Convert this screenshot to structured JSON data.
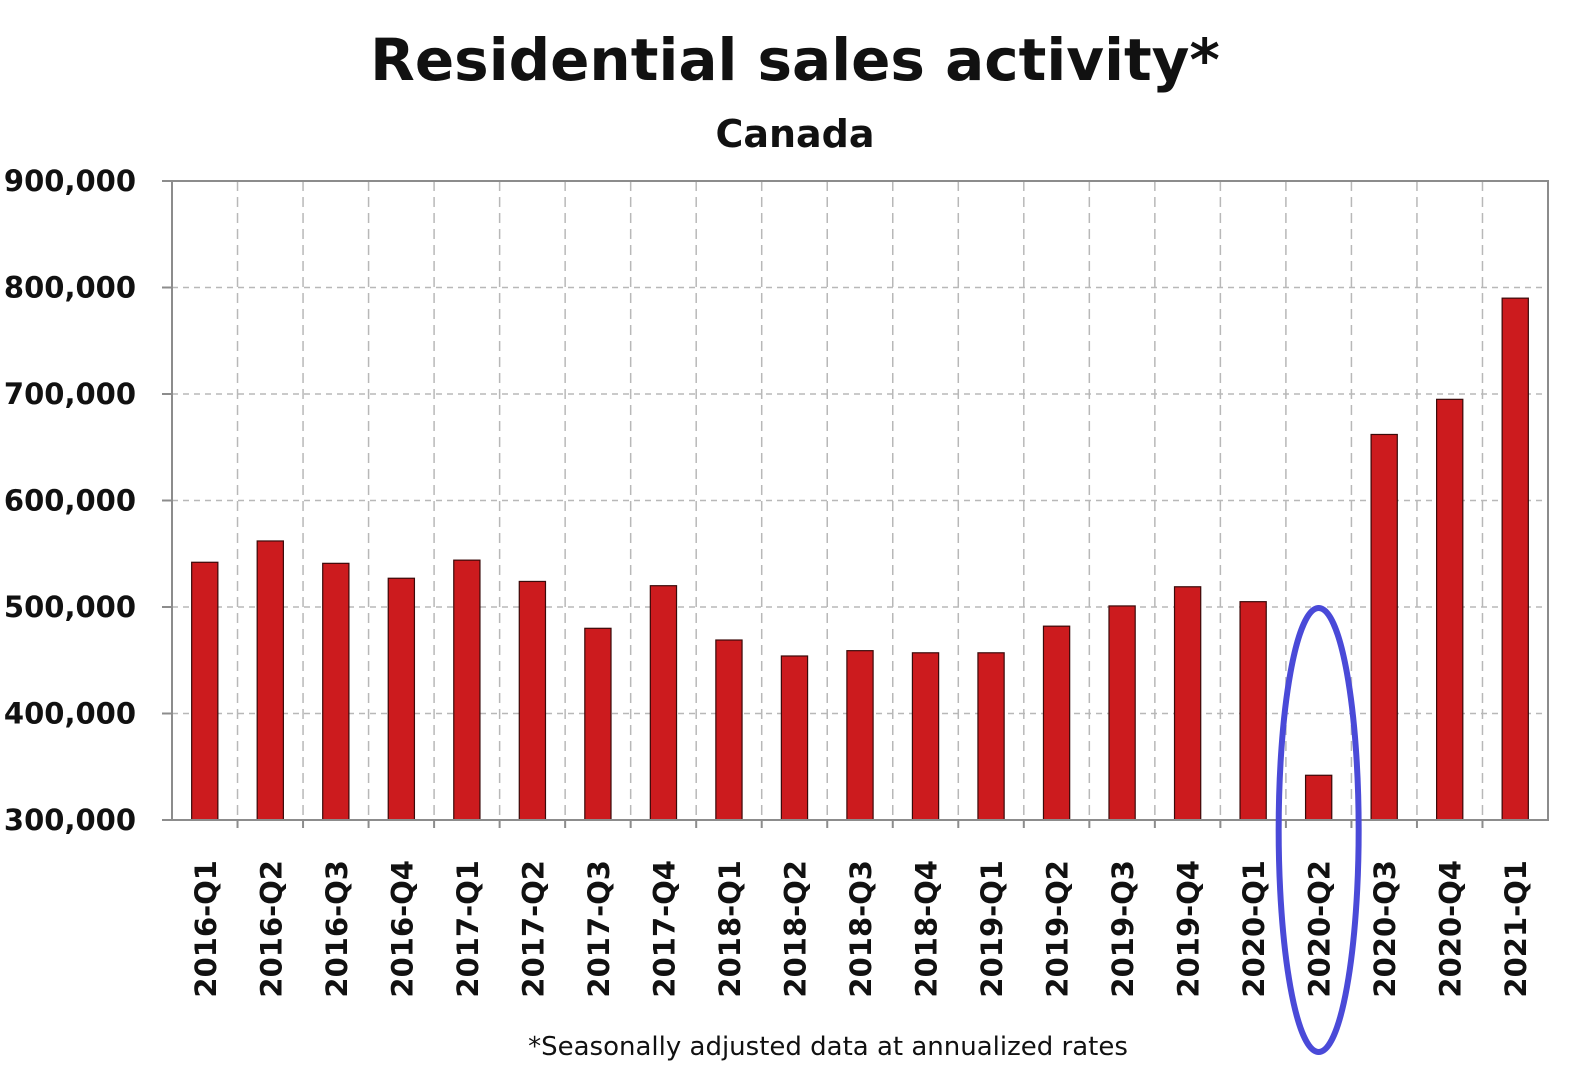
{
  "chart_data": {
    "type": "bar",
    "title": "Residential sales activity*",
    "subtitle": "Canada",
    "footnote": "*Seasonally adjusted data at annualized rates",
    "xlabel": "",
    "ylabel": "",
    "ylim": [
      300000,
      900000
    ],
    "yticks": [
      300000,
      400000,
      500000,
      600000,
      700000,
      800000,
      900000
    ],
    "ytick_labels": [
      "300,000",
      "400,000",
      "500,000",
      "600,000",
      "700,000",
      "800,000",
      "900,000"
    ],
    "categories": [
      "2016-Q1",
      "2016-Q2",
      "2016-Q3",
      "2016-Q4",
      "2017-Q1",
      "2017-Q2",
      "2017-Q3",
      "2017-Q4",
      "2018-Q1",
      "2018-Q2",
      "2018-Q3",
      "2018-Q4",
      "2019-Q1",
      "2019-Q2",
      "2019-Q3",
      "2019-Q4",
      "2020-Q1",
      "2020-Q2",
      "2020-Q3",
      "2020-Q4",
      "2021-Q1"
    ],
    "values": [
      542000,
      562000,
      541000,
      527000,
      544000,
      524000,
      480000,
      520000,
      469000,
      454000,
      459000,
      457000,
      457000,
      482000,
      501000,
      519000,
      505000,
      342000,
      662000,
      695000,
      790000
    ],
    "grid": true,
    "legend": "none",
    "highlight": {
      "category": "2020-Q2",
      "shape": "ellipse"
    },
    "colors": {
      "bar": "#cc1b1e",
      "bar_stroke": "#3a0a0a",
      "grid": "#b8b8b8",
      "axis": "#8c8c8c",
      "highlight": "#4a4ad8"
    }
  }
}
